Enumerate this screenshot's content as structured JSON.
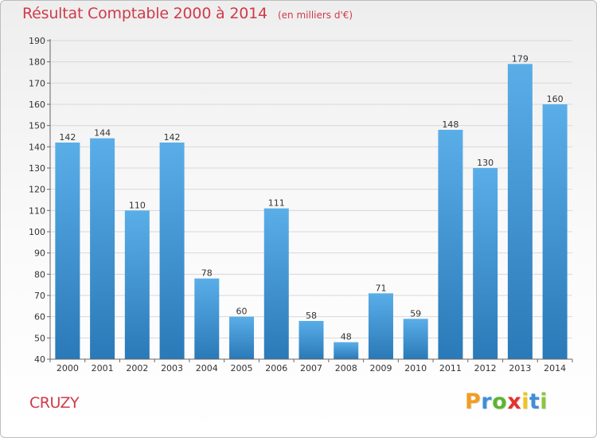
{
  "title": "Résultat Comptable 2000 à 2014",
  "unit": "(en milliers d'€)",
  "commune": "CRUZY",
  "logo": {
    "letters": [
      "P",
      "r",
      "o",
      "x",
      "i",
      "t",
      "i"
    ],
    "colors": [
      "#f39c20",
      "#3f8fd8",
      "#5cb531",
      "#e5322d",
      "#f0c419",
      "#3f8fd8",
      "#8cc63f"
    ]
  },
  "colors": {
    "title": "#d03a4a",
    "bar_top": "#5aaee8",
    "bar_bottom": "#2a79b8",
    "grid": "#d8d8d8",
    "axis": "#666666",
    "text": "#333333"
  },
  "chart_data": {
    "type": "bar",
    "title": "Résultat Comptable 2000 à 2014",
    "ylabel": "",
    "xlabel": "",
    "categories": [
      "2000",
      "2001",
      "2002",
      "2003",
      "2004",
      "2005",
      "2006",
      "2007",
      "2008",
      "2009",
      "2010",
      "2011",
      "2012",
      "2013",
      "2014"
    ],
    "values": [
      142,
      144,
      110,
      142,
      78,
      60,
      111,
      58,
      48,
      71,
      59,
      148,
      130,
      179,
      160
    ],
    "ylim": [
      40,
      190
    ],
    "yticks": [
      40,
      50,
      60,
      70,
      80,
      90,
      100,
      110,
      120,
      130,
      140,
      150,
      160,
      170,
      180,
      190
    ],
    "grid": true,
    "data_labels": true
  }
}
